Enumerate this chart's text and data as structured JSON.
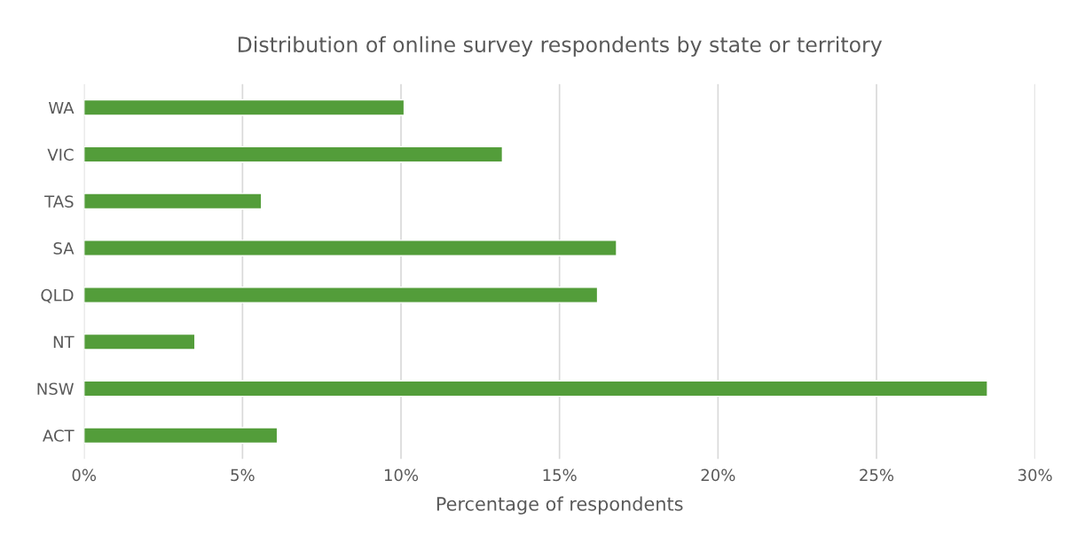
{
  "chart_data": {
    "type": "bar",
    "orientation": "horizontal",
    "title": "Distribution of online survey respondents by state or territory",
    "xlabel": "Percentage of respondents",
    "categories": [
      "WA",
      "VIC",
      "TAS",
      "SA",
      "QLD",
      "NT",
      "NSW",
      "ACT"
    ],
    "values": [
      10.1,
      13.2,
      5.6,
      16.8,
      16.2,
      3.5,
      28.5,
      6.1
    ],
    "color": "#539d3a",
    "xlim": [
      0,
      30
    ],
    "xticks": [
      {
        "value": 0,
        "label": "0%"
      },
      {
        "value": 5,
        "label": "5%"
      },
      {
        "value": 10,
        "label": "10%"
      },
      {
        "value": 15,
        "label": "15%"
      },
      {
        "value": 20,
        "label": "20%"
      },
      {
        "value": 25,
        "label": "25%"
      },
      {
        "value": 30,
        "label": "30%"
      }
    ],
    "grid": "x",
    "legend": false
  }
}
